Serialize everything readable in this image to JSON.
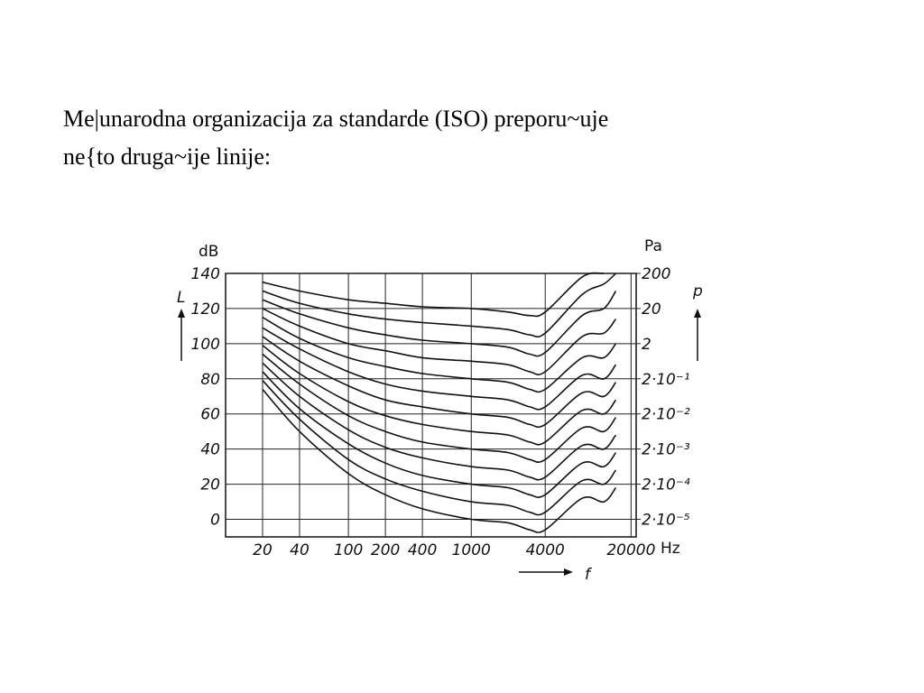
{
  "text": {
    "lines": [
      "Me|unarodna organizacija za standarde (ISO) preporu~uje",
      "ne{to druga~ije linije:"
    ]
  },
  "chart_data": {
    "type": "line",
    "ylabel": "dB",
    "ysymbol": "L",
    "y2label": "Pa",
    "y2symbol": "p",
    "xsymbol": "f",
    "xunit": "Hz",
    "xscale": "log",
    "y2scale": "log",
    "grid": true,
    "color": "#111111",
    "xlim": [
      10,
      22000
    ],
    "xticks": [
      20,
      40,
      100,
      200,
      400,
      1000,
      4000,
      20000
    ],
    "ylim": [
      -10,
      140
    ],
    "yticks": [
      0,
      20,
      40,
      60,
      80,
      100,
      120,
      140
    ],
    "y2lim": [
      6.3e-06,
      200
    ],
    "y2ticks": [
      200,
      20,
      2,
      {
        "value": 0.2,
        "label": "2·10⁻¹"
      },
      {
        "value": 0.02,
        "label": "2·10⁻²"
      },
      {
        "value": 0.002,
        "label": "2·10⁻³"
      },
      {
        "value": 0.0002,
        "label": "2·10⁻⁴"
      },
      {
        "value": 2e-05,
        "label": "2·10⁻⁵"
      }
    ],
    "x": [
      20,
      40,
      100,
      200,
      400,
      1000,
      2000,
      3000,
      4000,
      8000,
      12000,
      15000
    ],
    "series": [
      {
        "values": [
          74,
          50,
          26,
          14,
          6,
          0,
          -2,
          -6,
          -6,
          12,
          10,
          18
        ]
      },
      {
        "values": [
          79,
          57,
          34,
          23,
          16,
          10,
          8,
          4,
          4,
          22,
          20,
          28
        ]
      },
      {
        "values": [
          84,
          63,
          43,
          32,
          25,
          20,
          18,
          14,
          14,
          32,
          30,
          38
        ]
      },
      {
        "values": [
          89,
          70,
          51,
          41,
          35,
          30,
          28,
          24,
          24,
          42,
          40,
          48
        ]
      },
      {
        "values": [
          94,
          77,
          59,
          50,
          44,
          40,
          38,
          34,
          34,
          52,
          50,
          58
        ]
      },
      {
        "values": [
          99,
          83,
          67,
          59,
          54,
          50,
          48,
          44,
          44,
          62,
          60,
          68
        ]
      },
      {
        "values": [
          104,
          90,
          76,
          68,
          64,
          60,
          58,
          54,
          54,
          72,
          70,
          78
        ]
      },
      {
        "values": [
          109,
          97,
          84,
          77,
          73,
          70,
          68,
          64,
          64,
          82,
          80,
          88
        ]
      },
      {
        "values": [
          115,
          103,
          92,
          87,
          83,
          80,
          78,
          74,
          74,
          92,
          92,
          100
        ]
      },
      {
        "values": [
          120,
          110,
          100,
          96,
          92,
          90,
          88,
          84,
          84,
          104,
          106,
          114
        ]
      },
      {
        "values": [
          125,
          117,
          109,
          105,
          102,
          100,
          98,
          94,
          95,
          116,
          120,
          130
        ]
      },
      {
        "values": [
          130,
          123,
          117,
          114,
          112,
          110,
          108,
          105,
          106,
          128,
          134,
          140
        ]
      },
      {
        "values": [
          135,
          130,
          125,
          123,
          121,
          120,
          118,
          116,
          118,
          138,
          140,
          null
        ]
      }
    ]
  }
}
